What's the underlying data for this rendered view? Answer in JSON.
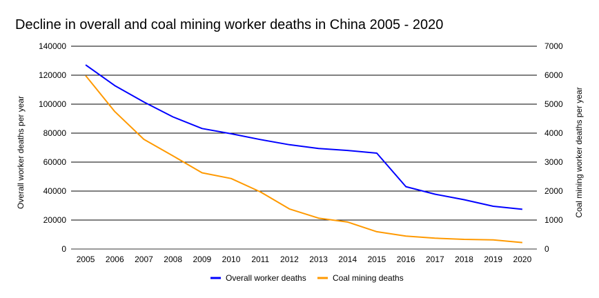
{
  "chart_data": {
    "type": "line",
    "title": "Decline in overall and coal mining worker deaths in China 2005 - 2020",
    "xlabel": "",
    "ylabel": "Overall worker deaths per year",
    "ylabel_right": "Coal mining worker deaths per year",
    "categories": [
      "2005",
      "2006",
      "2007",
      "2008",
      "2009",
      "2010",
      "2011",
      "2012",
      "2013",
      "2014",
      "2015",
      "2016",
      "2017",
      "2018",
      "2019",
      "2020"
    ],
    "ylim": [
      0,
      140000
    ],
    "ylim_right": [
      0,
      7000
    ],
    "yticks": [
      "0",
      "20000",
      "40000",
      "60000",
      "80000",
      "100000",
      "120000",
      "140000"
    ],
    "yticks_right": [
      "0",
      "1000",
      "2000",
      "3000",
      "4000",
      "5000",
      "6000",
      "7000"
    ],
    "grid": true,
    "legend_position": "bottom",
    "series": [
      {
        "name": "Overall worker deaths",
        "axis": "left",
        "color": "#0000ff",
        "values": [
          127089,
          112822,
          101480,
          91172,
          83196,
          79552,
          75572,
          71983,
          69434,
          68061,
          66182,
          43062,
          37852,
          34046,
          29519,
          27412
        ]
      },
      {
        "name": "Coal mining deaths",
        "axis": "right",
        "color": "#ff9900",
        "values": [
          5986,
          4746,
          3786,
          3215,
          2631,
          2433,
          1973,
          1384,
          1067,
          931,
          598,
          447,
          375,
          333,
          316,
          225
        ]
      }
    ]
  }
}
